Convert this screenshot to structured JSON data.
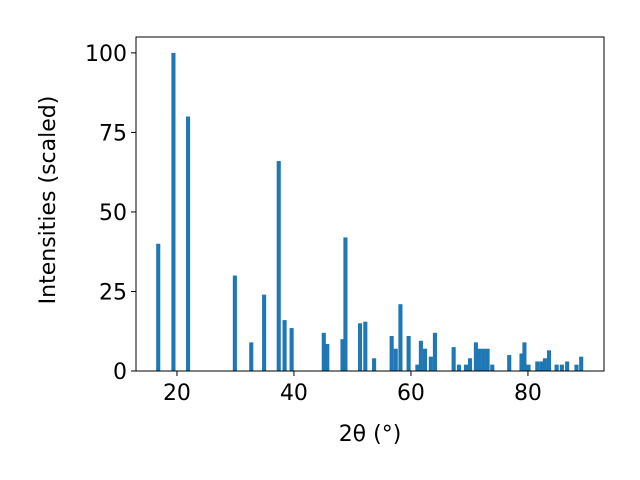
{
  "chart_data": {
    "type": "bar",
    "xlabel": "2θ (°)",
    "ylabel": "Intensities (scaled)",
    "xlim": [
      13,
      93
    ],
    "ylim": [
      0,
      105
    ],
    "xticks": [
      20,
      40,
      60,
      80
    ],
    "yticks": [
      0,
      25,
      50,
      75,
      100
    ],
    "bar_color": "#1f77b4",
    "bar_width": 0.7,
    "grid": false,
    "series": [
      {
        "x": [
          16.8,
          19.4,
          21.9,
          29.9,
          32.7,
          34.9,
          37.4,
          38.4,
          39.6,
          45.1,
          45.7,
          48.3,
          48.8,
          51.3,
          52.2,
          53.7,
          56.7,
          57.4,
          58.2,
          59.6,
          61.1,
          61.7,
          62.4,
          63.4,
          64.1,
          67.3,
          68.2,
          69.4,
          70.1,
          71.1,
          71.7,
          72.4,
          73.1,
          73.9,
          76.8,
          78.9,
          79.4,
          80.1,
          81.6,
          82.3,
          82.9,
          83.6,
          84.9,
          85.8,
          86.7,
          88.3,
          89.1
        ],
        "values": [
          40,
          100,
          80,
          30,
          9,
          24,
          66,
          16,
          13.5,
          12,
          8.5,
          10,
          42,
          15,
          15.5,
          4,
          11,
          7,
          21,
          11,
          2,
          9.5,
          7,
          4.5,
          12,
          7.5,
          2,
          2,
          4,
          9,
          7,
          7,
          7,
          2,
          5,
          5.5,
          9,
          2,
          3,
          3,
          4,
          6.5,
          2,
          2,
          3,
          2,
          4.5
        ]
      }
    ]
  }
}
